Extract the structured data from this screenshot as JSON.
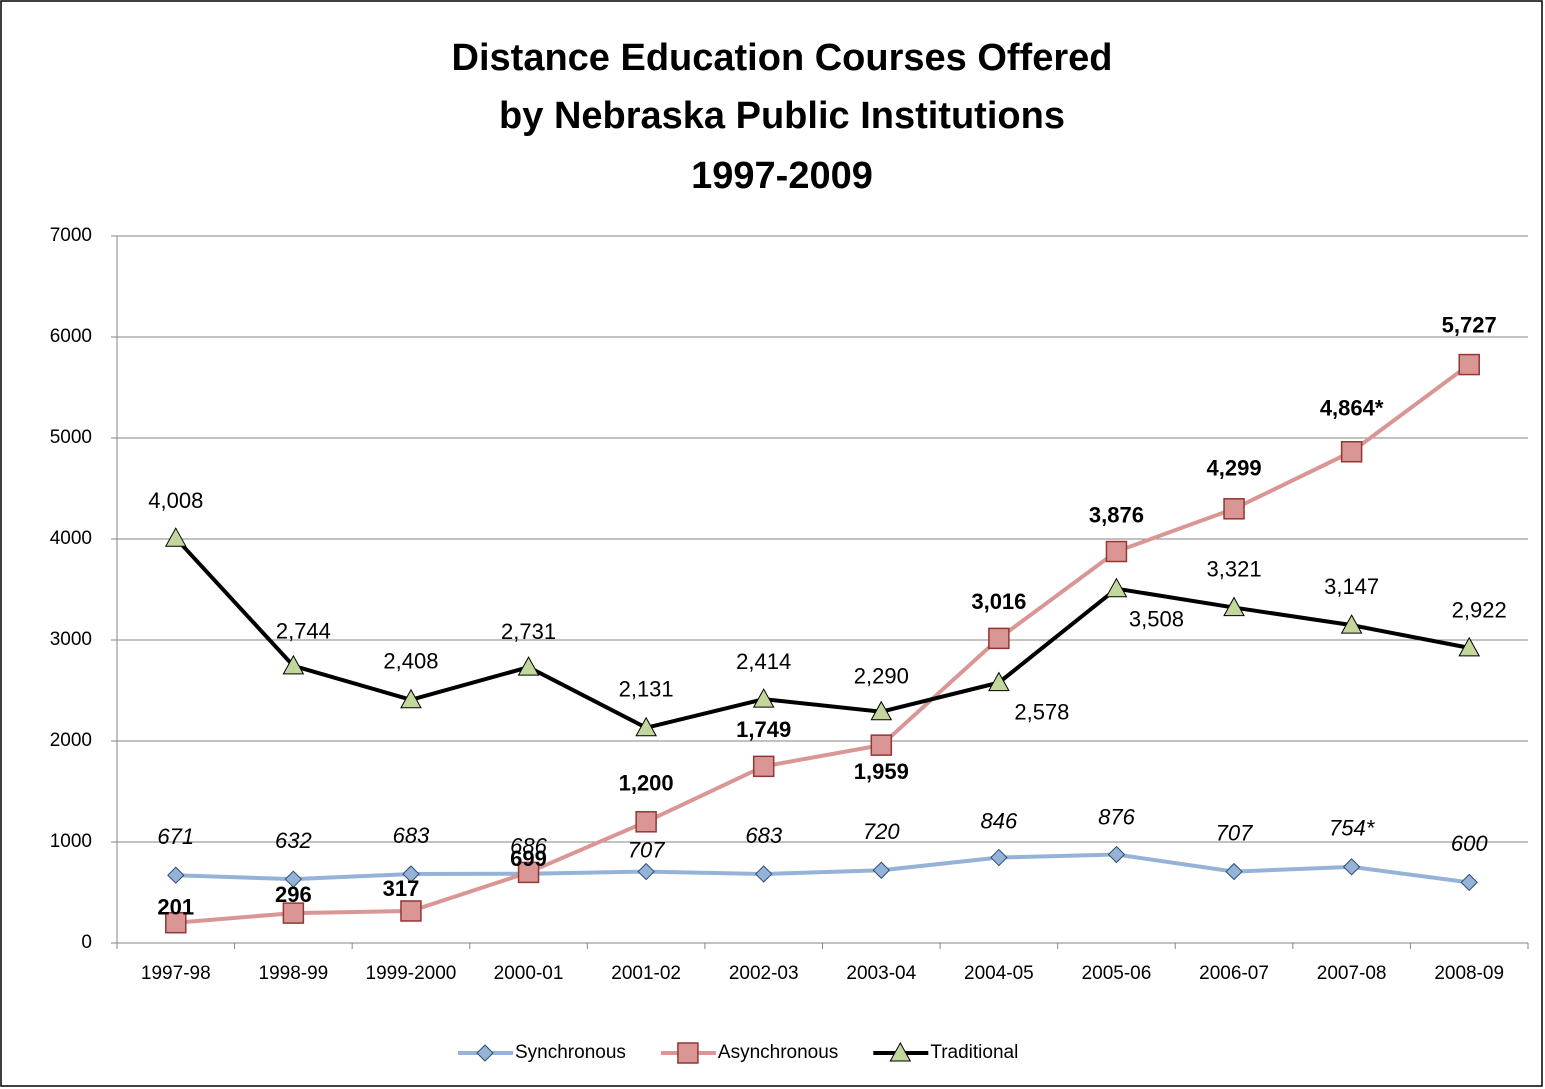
{
  "chart_data": {
    "type": "line",
    "title": [
      "Distance Education Courses Offered",
      "by Nebraska Public Institutions",
      "1997-2009"
    ],
    "categories": [
      "1997-98",
      "1998-99",
      "1999-2000",
      "2000-01",
      "2001-02",
      "2002-03",
      "2003-04",
      "2004-05",
      "2005-06",
      "2006-07",
      "2007-08",
      "2008-09"
    ],
    "series": [
      {
        "name": "Synchronous",
        "color": "#95b3d7",
        "marker": "diamond",
        "values": [
          671,
          632,
          683,
          686,
          707,
          683,
          720,
          846,
          876,
          707,
          754,
          600
        ],
        "value_labels": [
          "671",
          "632",
          "683",
          "686",
          "707",
          "683",
          "720",
          "846",
          "876",
          "707",
          "754*",
          "600"
        ]
      },
      {
        "name": "Asynchronous",
        "color": "#d99694",
        "marker": "square",
        "values": [
          201,
          296,
          317,
          699,
          1200,
          1749,
          1959,
          3016,
          3876,
          4299,
          4864,
          5727
        ],
        "value_labels": [
          "201",
          "296",
          "317",
          "699",
          "1,200",
          "1,749",
          "1,959",
          "3,016",
          "3,876",
          "4,299",
          "4,864*",
          "5,727"
        ]
      },
      {
        "name": "Traditional",
        "color": "#000000",
        "marker": "triangle",
        "marker_color": "#c3d69b",
        "values": [
          4008,
          2744,
          2408,
          2731,
          2131,
          2414,
          2290,
          2578,
          3508,
          3321,
          3147,
          2922
        ],
        "value_labels": [
          "4,008",
          "2,744",
          "2,408",
          "2,731",
          "2,131",
          "2,414",
          "2,290",
          "2,578",
          "3,508",
          "3,321",
          "3,147",
          "2,922"
        ]
      }
    ],
    "ylim": [
      0,
      7000
    ],
    "yticks": [
      0,
      1000,
      2000,
      3000,
      4000,
      5000,
      6000,
      7000
    ],
    "grid": true,
    "legend": "bottom"
  }
}
